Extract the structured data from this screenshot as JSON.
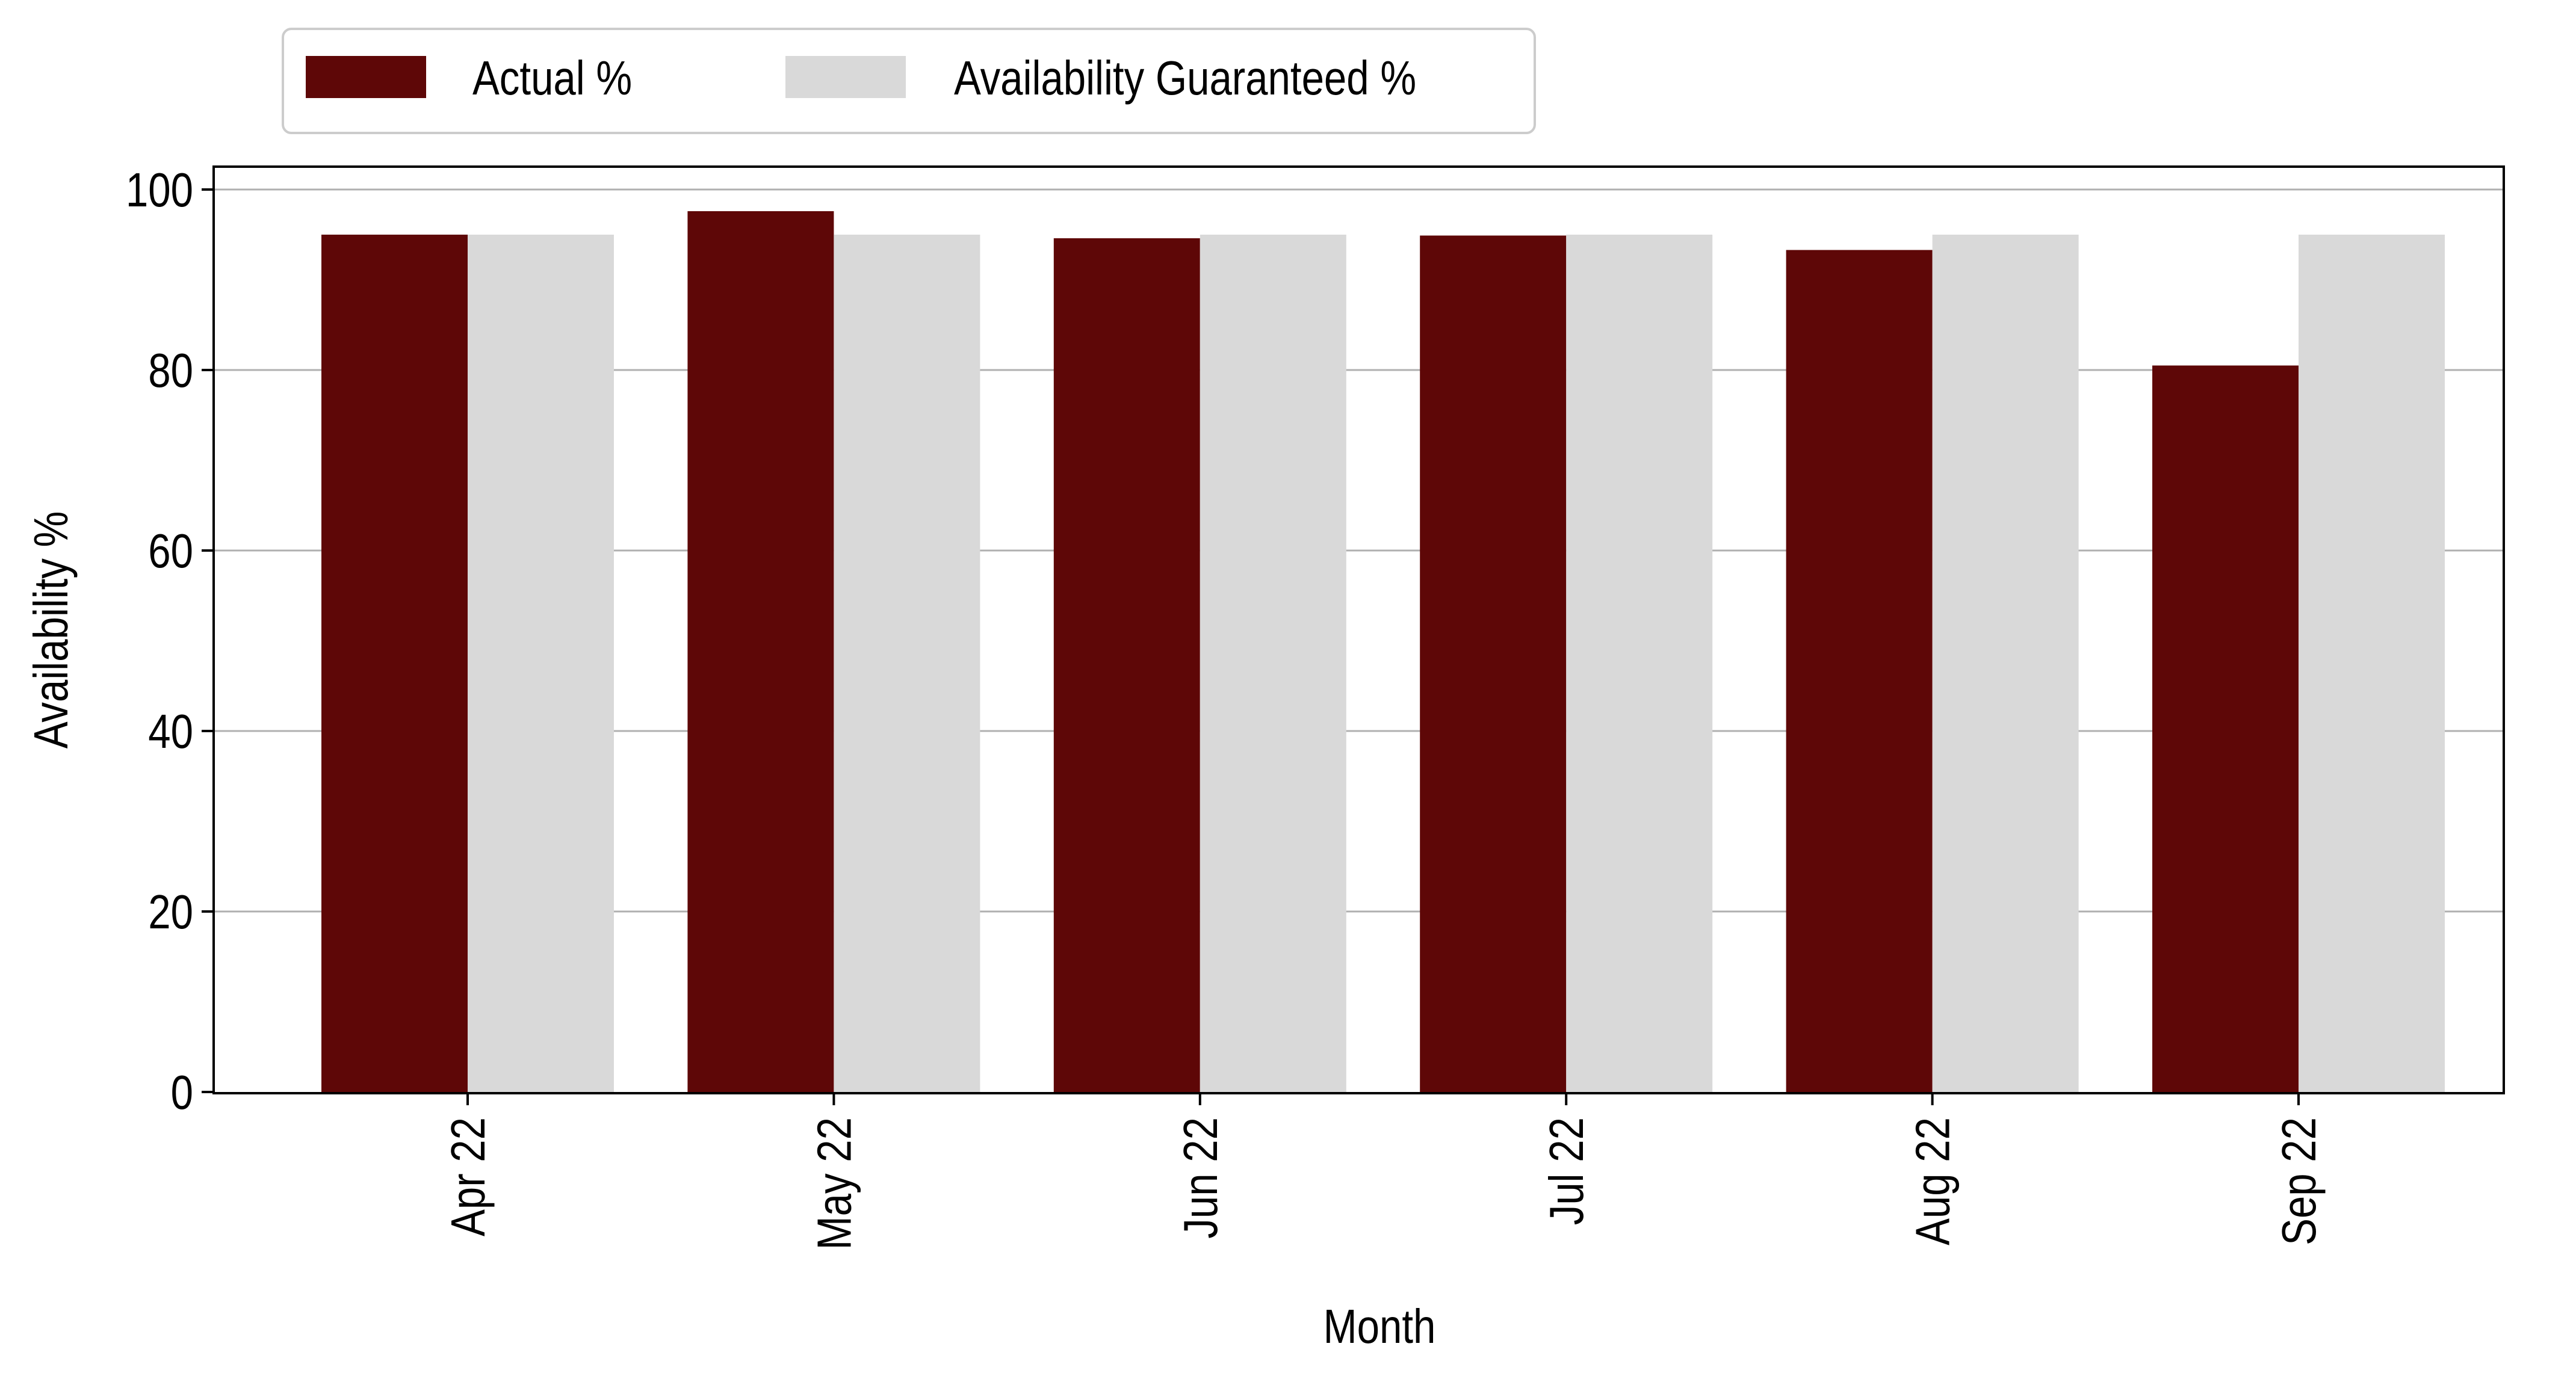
{
  "chart_data": {
    "type": "bar",
    "xlabel": "Month",
    "ylabel": "Availability %",
    "categories": [
      "Apr 22",
      "May 22",
      "Jun 22",
      "Jul 22",
      "Aug 22",
      "Sep 22"
    ],
    "series": [
      {
        "name": "Actual %",
        "color": "#5e0707",
        "values": [
          95.0,
          97.6,
          94.6,
          94.9,
          93.3,
          80.5
        ]
      },
      {
        "name": "Availability Guaranteed %",
        "color": "#d9d9d9",
        "values": [
          95.0,
          95.0,
          95.0,
          95.0,
          95.0,
          95.0
        ]
      }
    ],
    "ylim": [
      0,
      100
    ],
    "yticks": [
      "0",
      "20",
      "40",
      "60",
      "80",
      "100"
    ],
    "grid": "horizontal",
    "legend_position": "top-left, above plot"
  }
}
